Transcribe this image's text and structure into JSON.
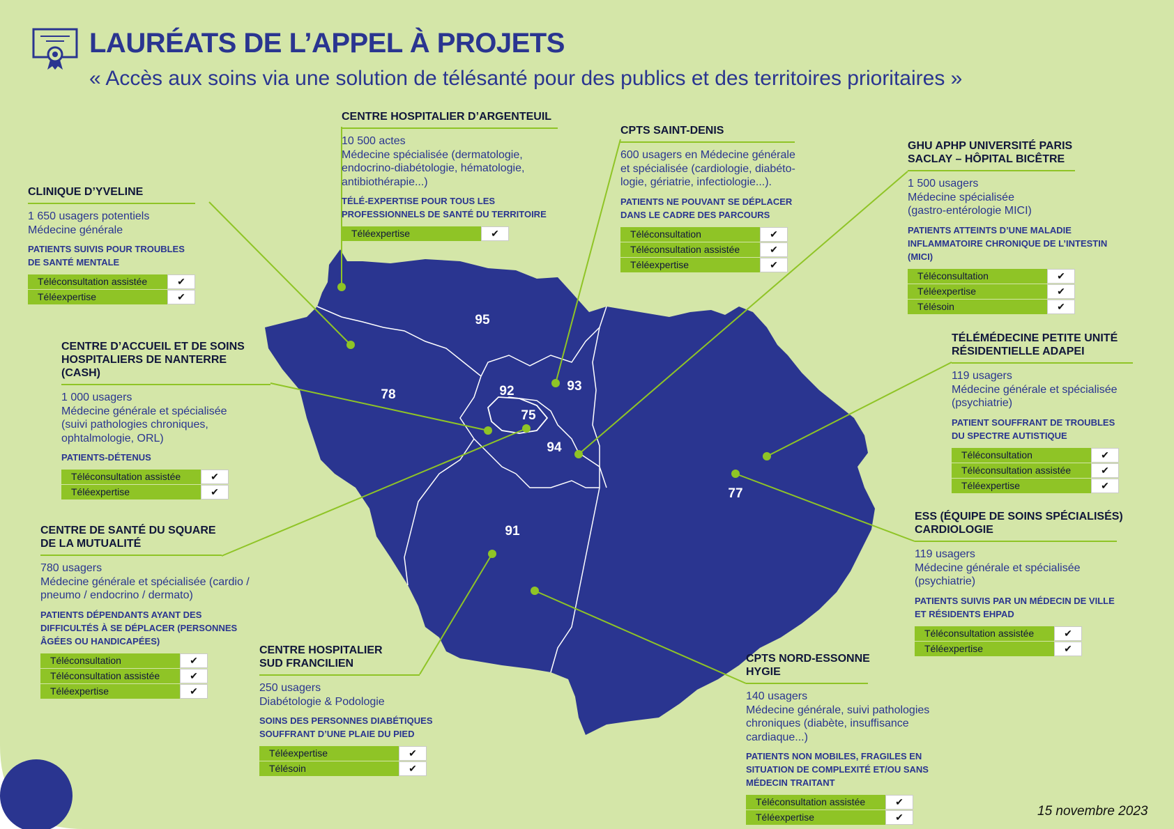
{
  "header": {
    "title": "LAURÉATS DE L’APPEL À PROJETS",
    "subtitle": "« Accès aux soins via une solution de télésanté pour des publics et des territoires prioritaires »",
    "icon": "certificate-icon"
  },
  "date": "15 novembre 2023",
  "colors": {
    "background": "#d4e6a8",
    "map": "#2a3590",
    "accent": "#8fc426",
    "text": "#2a3590"
  },
  "departments": [
    "95",
    "78",
    "92",
    "93",
    "75",
    "94",
    "91",
    "77"
  ],
  "laureates": [
    {
      "title": [
        "CLINIQUE D’YVELINE"
      ],
      "lines": [
        "1 650 usagers potentiels",
        "Médecine générale"
      ],
      "target": [
        "PATIENTS SUIVIS POUR TROUBLES",
        "DE SANTÉ MENTALE"
      ],
      "services": [
        "Téléconsultation assistée",
        "Téléexpertise"
      ]
    },
    {
      "title": [
        "CENTRE HOSPITALIER D’ARGENTEUIL"
      ],
      "lines": [
        "10 500 actes",
        "Médecine spécialisée (dermatologie,",
        "endocrino-diabétologie, hématologie,",
        "antibiothérapie...)"
      ],
      "target": [
        "TÉLÉ-EXPERTISE POUR TOUS LES",
        "PROFESSIONNELS DE SANTÉ DU TERRITOIRE"
      ],
      "services": [
        "Téléexpertise"
      ]
    },
    {
      "title": [
        "CPTS SAINT-DENIS"
      ],
      "lines": [
        "600 usagers en Médecine générale",
        "et spécialisée (cardiologie, diabéto-",
        "logie, gériatrie, infectiologie...)."
      ],
      "target": [
        "PATIENTS NE POUVANT SE DÉPLACER",
        "DANS LE CADRE DES PARCOURS"
      ],
      "services": [
        "Téléconsultation",
        "Téléconsultation assistée",
        "Téléexpertise"
      ]
    },
    {
      "title": [
        "GHU APHP UNIVERSITÉ PARIS",
        "SACLAY – HÔPITAL BICÊTRE"
      ],
      "lines": [
        "1 500 usagers",
        "Médecine spécialisée",
        "(gastro-entérologie MICI)"
      ],
      "target": [
        "PATIENTS ATTEINTS D’UNE MALADIE",
        "INFLAMMATOIRE CHRONIQUE DE L’INTESTIN",
        "(MICI)"
      ],
      "services": [
        "Téléconsultation",
        "Téléexpertise",
        "Télésoin"
      ]
    },
    {
      "title": [
        "CENTRE D’ACCUEIL ET DE SOINS",
        "HOSPITALIERS DE NANTERRE",
        "(CASH)"
      ],
      "lines": [
        "1 000 usagers",
        "Médecine générale et spécialisée",
        "(suivi pathologies chroniques,",
        "ophtalmologie, ORL)"
      ],
      "target": [
        "PATIENTS-DÉTENUS"
      ],
      "services": [
        "Téléconsultation assistée",
        "Téléexpertise"
      ]
    },
    {
      "title": [
        "TÉLÉMÉDECINE PETITE UNITÉ",
        "RÉSIDENTIELLE ADAPEI"
      ],
      "lines": [
        "119 usagers",
        "Médecine générale et spécialisée",
        "(psychiatrie)"
      ],
      "target": [
        "PATIENT SOUFFRANT DE TROUBLES",
        "DU SPECTRE AUTISTIQUE"
      ],
      "services": [
        "Téléconsultation",
        "Téléconsultation assistée",
        "Téléexpertise"
      ]
    },
    {
      "title": [
        "CENTRE DE SANTÉ DU SQUARE",
        "DE LA MUTUALITÉ"
      ],
      "lines": [
        "780 usagers",
        "Médecine générale et spécialisée (cardio /",
        "pneumo / endocrino / dermato)"
      ],
      "target": [
        "PATIENTS DÉPENDANTS AYANT DES",
        "DIFFICULTÉS À SE DÉPLACER (PERSONNES",
        "ÂGÉES OU HANDICAPÉES)"
      ],
      "services": [
        "Téléconsultation",
        "Téléconsultation assistée",
        "Téléexpertise"
      ]
    },
    {
      "title": [
        "ESS (ÉQUIPE DE SOINS SPÉCIALISÉS)",
        "CARDIOLOGIE"
      ],
      "lines": [
        "119 usagers",
        "Médecine générale et spécialisée",
        "(psychiatrie)"
      ],
      "target": [
        "PATIENTS SUIVIS PAR UN MÉDECIN DE VILLE",
        "ET RÉSIDENTS EHPAD"
      ],
      "services": [
        "Téléconsultation assistée",
        "Téléexpertise"
      ]
    },
    {
      "title": [
        "CENTRE HOSPITALIER",
        "SUD FRANCILIEN"
      ],
      "lines": [
        "250 usagers",
        "Diabétologie & Podologie"
      ],
      "target": [
        "SOINS DES PERSONNES DIABÉTIQUES",
        "SOUFFRANT D’UNE PLAIE DU PIED"
      ],
      "services": [
        "Téléexpertise",
        "Télésoin"
      ]
    },
    {
      "title": [
        "CPTS NORD-ESSONNE",
        "HYGIE"
      ],
      "lines": [
        "140 usagers",
        "Médecine générale, suivi pathologies",
        "chroniques (diabète, insuffisance",
        "cardiaque...)"
      ],
      "target": [
        "PATIENTS NON MOBILES, FRAGILES EN",
        "SITUATION DE COMPLEXITÉ ET/OU SANS",
        "MÉDECIN TRAITANT"
      ],
      "services": [
        "Téléconsultation assistée",
        "Téléexpertise"
      ]
    }
  ]
}
